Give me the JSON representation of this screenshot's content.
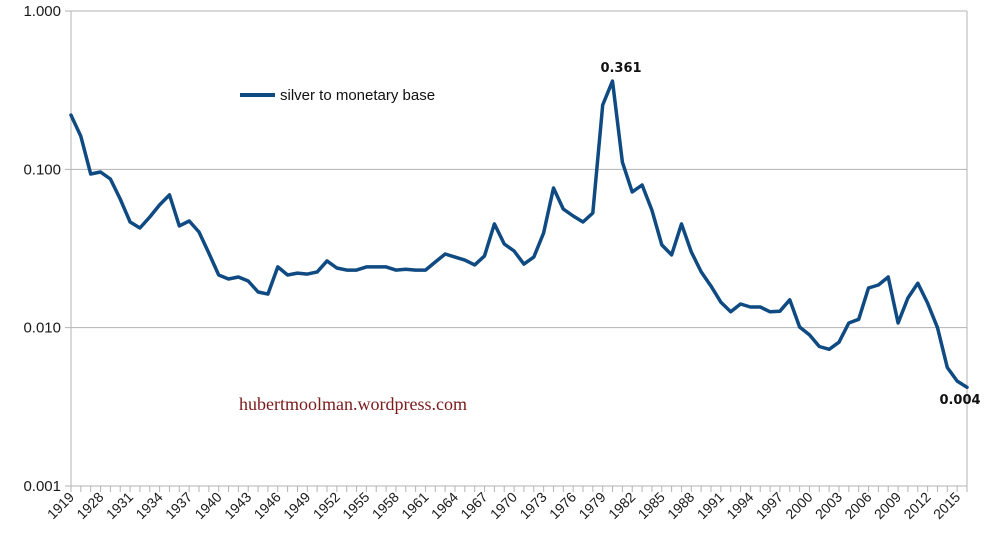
{
  "chart_data": {
    "type": "line",
    "title": "",
    "xlabel": "",
    "ylabel": "",
    "yscale": "log",
    "ylim": [
      0.001,
      1.0
    ],
    "yticks": [
      "1.000",
      "0.100",
      "0.010",
      "0.001"
    ],
    "ytick_values": [
      1.0,
      0.1,
      0.01,
      0.001
    ],
    "grid": true,
    "legend_position": "top-left",
    "categories": [
      1919,
      1926,
      1927,
      1928,
      1929,
      1930,
      1931,
      1932,
      1933,
      1934,
      1935,
      1936,
      1937,
      1938,
      1939,
      1940,
      1941,
      1942,
      1943,
      1944,
      1945,
      1946,
      1947,
      1948,
      1949,
      1950,
      1951,
      1952,
      1953,
      1954,
      1955,
      1956,
      1957,
      1958,
      1959,
      1960,
      1961,
      1962,
      1963,
      1964,
      1965,
      1966,
      1967,
      1968,
      1969,
      1970,
      1971,
      1972,
      1973,
      1974,
      1975,
      1976,
      1977,
      1978,
      1979,
      1980,
      1981,
      1982,
      1983,
      1984,
      1985,
      1986,
      1987,
      1988,
      1989,
      1990,
      1991,
      1992,
      1993,
      1994,
      1995,
      1996,
      1997,
      1998,
      1999,
      2000,
      2001,
      2002,
      2003,
      2004,
      2005,
      2006,
      2007,
      2008,
      2009,
      2010,
      2011,
      2012,
      2013,
      2014,
      2015,
      2016
    ],
    "xtick_labels": [
      "1919",
      "1928",
      "1931",
      "1934",
      "1937",
      "1940",
      "1943",
      "1946",
      "1949",
      "1952",
      "1955",
      "1958",
      "1961",
      "1964",
      "1967",
      "1970",
      "1973",
      "1976",
      "1979",
      "1982",
      "1985",
      "1988",
      "1991",
      "1994",
      "1997",
      "2000",
      "2003",
      "2006",
      "2009",
      "2012",
      "2015"
    ],
    "series": [
      {
        "name": "silver to monetary base",
        "color": "#0f4a82",
        "values": [
          0.22,
          0.162,
          0.0935,
          0.0962,
          0.0869,
          0.065,
          0.0465,
          0.0426,
          0.05,
          0.0596,
          0.0689,
          0.0439,
          0.0472,
          0.0402,
          0.0296,
          0.0215,
          0.0203,
          0.0209,
          0.0197,
          0.0168,
          0.0163,
          0.0242,
          0.0215,
          0.0221,
          0.0218,
          0.0225,
          0.0264,
          0.0238,
          0.0231,
          0.0231,
          0.0242,
          0.0242,
          0.0242,
          0.0231,
          0.0234,
          0.0231,
          0.0231,
          0.026,
          0.0292,
          0.0279,
          0.0267,
          0.0249,
          0.0284,
          0.0452,
          0.0338,
          0.0305,
          0.0252,
          0.0279,
          0.0396,
          0.0762,
          0.0561,
          0.0507,
          0.0465,
          0.053,
          0.255,
          0.361,
          0.111,
          0.0719,
          0.0796,
          0.0553,
          0.0333,
          0.0288,
          0.0452,
          0.0301,
          0.0225,
          0.0183,
          0.0145,
          0.0126,
          0.0141,
          0.0135,
          0.0135,
          0.0126,
          0.0127,
          0.015,
          0.0101,
          0.009,
          0.0076,
          0.0073,
          0.0081,
          0.0107,
          0.0113,
          0.0178,
          0.0186,
          0.0209,
          0.0107,
          0.0154,
          0.0191,
          0.0143,
          0.01,
          0.0056,
          0.0046,
          0.0042
        ]
      }
    ],
    "annotations": [
      {
        "text": "0.361",
        "category": 1980
      },
      {
        "text": "0.004",
        "category": 2016
      }
    ],
    "legend": [
      "silver to monetary base"
    ],
    "watermark": "hubertmoolman.wordpress.com"
  }
}
